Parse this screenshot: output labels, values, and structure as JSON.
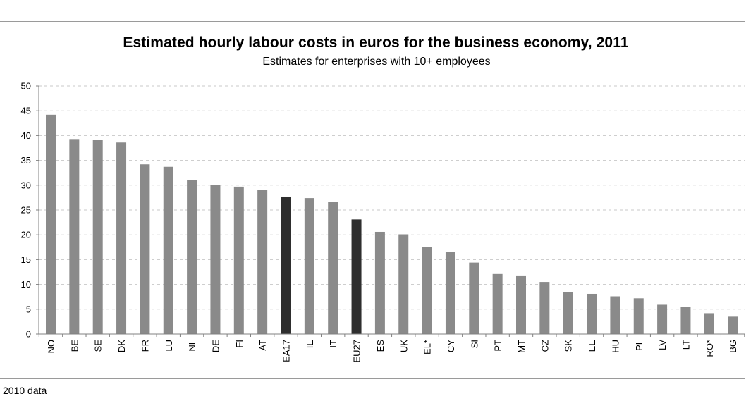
{
  "chart_data": {
    "type": "bar",
    "title": "Estimated hourly labour costs in euros for the business economy, 2011",
    "subtitle": "Estimates for enterprises with 10+ employees",
    "xlabel": "",
    "ylabel": "",
    "ylim": [
      0,
      50
    ],
    "yticks": [
      0,
      5,
      10,
      15,
      20,
      25,
      30,
      35,
      40,
      45,
      50
    ],
    "grid": true,
    "legend": "none",
    "categories": [
      "NO",
      "BE",
      "SE",
      "DK",
      "FR",
      "LU",
      "NL",
      "DE",
      "FI",
      "AT",
      "EA17",
      "IE",
      "IT",
      "EU27",
      "ES",
      "UK",
      "EL*",
      "CY",
      "SI",
      "PT",
      "MT",
      "CZ",
      "SK",
      "EE",
      "HU",
      "PL",
      "LV",
      "LT",
      "RO*",
      "BG"
    ],
    "values": [
      44.2,
      39.3,
      39.1,
      38.6,
      34.2,
      33.7,
      31.1,
      30.1,
      29.7,
      29.1,
      27.7,
      27.4,
      26.6,
      23.1,
      20.6,
      20.1,
      17.5,
      16.5,
      14.4,
      12.1,
      11.8,
      10.5,
      8.5,
      8.1,
      7.6,
      7.2,
      5.9,
      5.5,
      4.2,
      3.5
    ],
    "highlighted": [
      "EA17",
      "EU27"
    ],
    "colors": {
      "bar": "#8a8a8a",
      "highlight": "#2e2e2e",
      "grid": "#c8c8c8",
      "axis": "#808080"
    }
  },
  "footnote": "2010 data"
}
